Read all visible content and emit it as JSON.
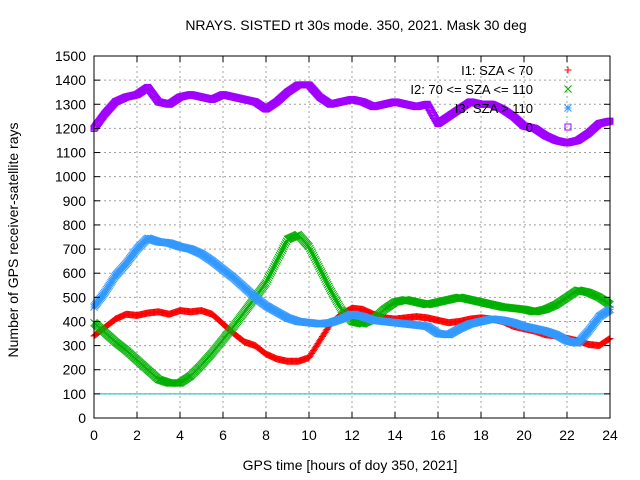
{
  "chart_data": {
    "type": "scatter",
    "title": "NRAYS. SISTED rt 30s mode. 350, 2021. Mask 30 deg",
    "xlabel": "GPS time [hours of doy 350, 2021]",
    "ylabel": "Number of GPS receiver-satellite rays",
    "xlim": [
      0,
      24
    ],
    "ylim": [
      0,
      1500
    ],
    "xticks": [
      0,
      2,
      4,
      6,
      8,
      10,
      12,
      14,
      16,
      18,
      20,
      22,
      24
    ],
    "yticks": [
      0,
      100,
      200,
      300,
      400,
      500,
      600,
      700,
      800,
      900,
      1000,
      1100,
      1200,
      1300,
      1400,
      1500
    ],
    "grid": true,
    "legend_position": "top-right",
    "threshold_line": {
      "value": 100,
      "color": "#00c0c0"
    },
    "series": [
      {
        "name": "I1: SZA < 70",
        "marker": "+",
        "color": "#ff0000",
        "x": [
          0,
          0.5,
          1,
          1.5,
          2,
          2.5,
          3,
          3.5,
          4,
          4.5,
          5,
          5.5,
          6,
          6.5,
          7,
          7.5,
          8,
          8.5,
          9,
          9.5,
          10,
          10.5,
          11,
          11.5,
          12,
          12.5,
          13,
          13.5,
          14,
          14.5,
          15,
          15.5,
          16,
          16.5,
          17,
          17.5,
          18,
          18.5,
          19,
          19.5,
          20,
          20.5,
          21,
          21.5,
          22,
          22.5,
          23,
          23.5,
          24
        ],
        "values": [
          340,
          375,
          410,
          430,
          425,
          435,
          440,
          430,
          445,
          440,
          445,
          430,
          390,
          350,
          315,
          300,
          265,
          245,
          235,
          235,
          250,
          320,
          390,
          430,
          455,
          450,
          430,
          415,
          410,
          415,
          420,
          415,
          405,
          395,
          400,
          410,
          415,
          410,
          400,
          380,
          370,
          360,
          345,
          340,
          330,
          320,
          305,
          300,
          330
        ]
      },
      {
        "name": "I2: 70 <= SZA <= 110",
        "marker": "x",
        "color": "#00b000",
        "x": [
          0,
          0.5,
          1,
          1.5,
          2,
          2.5,
          3,
          3.5,
          4,
          4.5,
          5,
          5.5,
          6,
          6.5,
          7,
          7.5,
          8,
          8.5,
          9,
          9.5,
          10,
          10.5,
          11,
          11.5,
          12,
          12.5,
          13,
          13.5,
          14,
          14.5,
          15,
          15.5,
          16,
          16.5,
          17,
          17.5,
          18,
          18.5,
          19,
          19.5,
          20,
          20.5,
          21,
          21.5,
          22,
          22.5,
          23,
          23.5,
          24
        ],
        "values": [
          395,
          355,
          315,
          280,
          240,
          200,
          160,
          145,
          145,
          175,
          220,
          270,
          325,
          380,
          440,
          500,
          560,
          650,
          740,
          760,
          710,
          620,
          530,
          450,
          400,
          390,
          410,
          450,
          480,
          490,
          480,
          470,
          480,
          490,
          500,
          490,
          480,
          470,
          460,
          455,
          450,
          440,
          450,
          470,
          500,
          530,
          520,
          500,
          470
        ]
      },
      {
        "name": "I3: SZA > 110",
        "marker": "*",
        "color": "#3399ff",
        "x": [
          0,
          0.5,
          1,
          1.5,
          2,
          2.5,
          3,
          3.5,
          4,
          4.5,
          5,
          5.5,
          6,
          6.5,
          7,
          7.5,
          8,
          8.5,
          9,
          9.5,
          10,
          10.5,
          11,
          11.5,
          12,
          12.5,
          13,
          13.5,
          14,
          14.5,
          15,
          15.5,
          16,
          16.5,
          17,
          17.5,
          18,
          18.5,
          19,
          19.5,
          20,
          20.5,
          21,
          21.5,
          22,
          22.5,
          23,
          23.5,
          24
        ],
        "values": [
          460,
          520,
          590,
          640,
          700,
          745,
          730,
          725,
          710,
          700,
          680,
          650,
          615,
          580,
          540,
          500,
          465,
          440,
          415,
          400,
          395,
          390,
          395,
          410,
          430,
          420,
          405,
          400,
          395,
          390,
          385,
          380,
          350,
          345,
          370,
          390,
          400,
          410,
          405,
          395,
          380,
          370,
          360,
          345,
          320,
          310,
          360,
          420,
          450
        ]
      },
      {
        "name": "0",
        "marker": "square",
        "color": "#a000ff",
        "x": [
          0,
          0.5,
          1,
          1.5,
          2,
          2.5,
          3,
          3.5,
          4,
          4.5,
          5,
          5.5,
          6,
          6.5,
          7,
          7.5,
          8,
          8.5,
          9,
          9.5,
          10,
          10.5,
          11,
          11.5,
          12,
          12.5,
          13,
          13.5,
          14,
          14.5,
          15,
          15.5,
          16,
          16.5,
          17,
          17.5,
          18,
          18.5,
          19,
          19.5,
          20,
          20.5,
          21,
          21.5,
          22,
          22.5,
          23,
          23.5,
          24
        ],
        "values": [
          1200,
          1260,
          1310,
          1330,
          1340,
          1370,
          1310,
          1300,
          1330,
          1340,
          1330,
          1320,
          1340,
          1330,
          1320,
          1310,
          1280,
          1310,
          1350,
          1380,
          1380,
          1330,
          1300,
          1310,
          1320,
          1310,
          1290,
          1300,
          1310,
          1300,
          1290,
          1300,
          1220,
          1250,
          1280,
          1310,
          1300,
          1300,
          1280,
          1250,
          1210,
          1200,
          1170,
          1150,
          1140,
          1150,
          1180,
          1220,
          1230
        ]
      }
    ]
  }
}
